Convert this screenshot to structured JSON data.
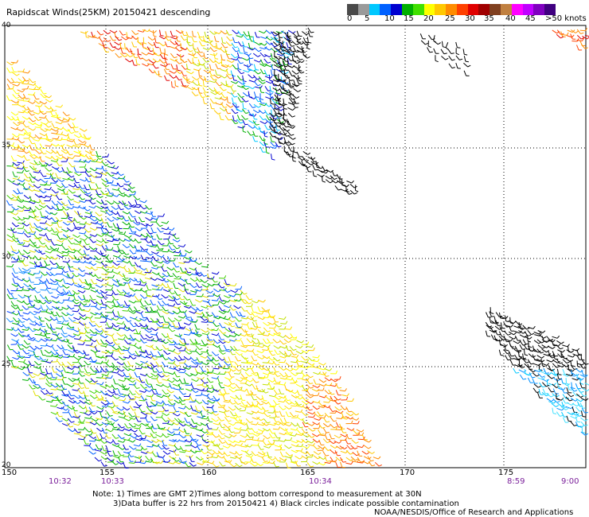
{
  "title": "Rapidscat Winds(25KM)   20150421 descending",
  "colorbar": {
    "ticks": [
      "0",
      "5",
      "10",
      "15",
      "20",
      "25",
      "30",
      "35",
      "40",
      "45",
      ">50 knots"
    ],
    "colors": [
      "#4a4a4a",
      "#9a9a9a",
      "#00c8ff",
      "#0060ff",
      "#0000d0",
      "#00b000",
      "#40e000",
      "#ffff00",
      "#ffc800",
      "#ff8c00",
      "#ff4000",
      "#e00000",
      "#a00000",
      "#804020",
      "#c08040",
      "#ff00ff",
      "#c000ff",
      "#8000c0",
      "#400080"
    ]
  },
  "map": {
    "lon_labels": [
      "150",
      "155",
      "160",
      "165",
      "170",
      "175"
    ],
    "lat_labels": [
      "40",
      "35",
      "30",
      "25",
      "20"
    ],
    "pass_times": [
      "10:32",
      "10:33",
      "10:34",
      "8:59",
      "9:00"
    ]
  },
  "notes": {
    "line1": "Note: 1) Times are GMT  2)Times along bottom correspond to measurement at 30N",
    "line2": "3)Data buffer is 22 hrs from 20150421  4) Black circles indicate possible contamination",
    "credit": "NOAA/NESDIS/Office of Research and Applications"
  }
}
